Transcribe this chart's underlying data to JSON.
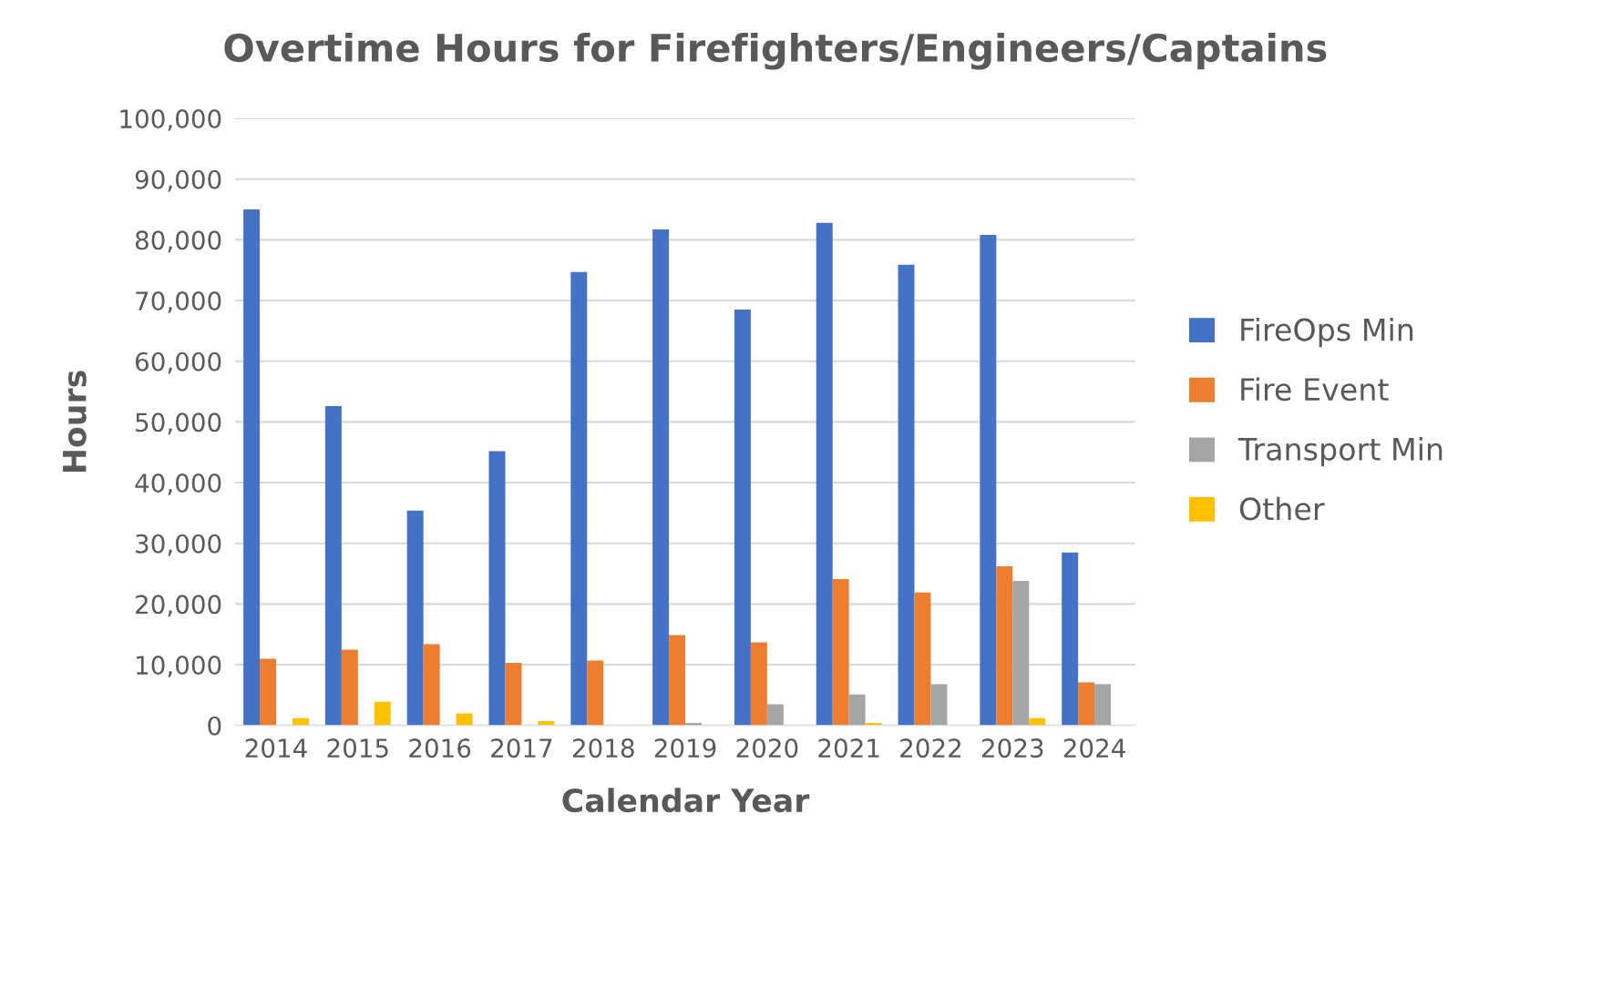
{
  "chart_data": {
    "type": "bar",
    "title": "Overtime Hours for Firefighters/Engineers/Captains",
    "xlabel": "Calendar Year",
    "ylabel": "Hours",
    "categories": [
      "2014",
      "2015",
      "2016",
      "2017",
      "2018",
      "2019",
      "2020",
      "2021",
      "2022",
      "2023",
      "2024"
    ],
    "series": [
      {
        "name": "FireOps Min",
        "color": "#4472c4",
        "values": [
          85000,
          52600,
          35400,
          45200,
          74700,
          81700,
          68500,
          82800,
          75900,
          80800,
          28500
        ]
      },
      {
        "name": "Fire Event",
        "color": "#ed7d31",
        "values": [
          11000,
          12500,
          13400,
          10300,
          10700,
          14900,
          13700,
          24100,
          21900,
          26200,
          7100
        ]
      },
      {
        "name": "Transport Min",
        "color": "#a5a5a5",
        "values": [
          0,
          0,
          0,
          0,
          0,
          400,
          3500,
          5100,
          6800,
          23800,
          6800
        ]
      },
      {
        "name": "Other",
        "color": "#ffc000",
        "values": [
          1200,
          3900,
          2000,
          700,
          0,
          0,
          0,
          400,
          0,
          1200,
          0
        ]
      }
    ],
    "ylim": [
      0,
      100000
    ],
    "yticks": [
      {
        "value": 0,
        "label": "0"
      },
      {
        "value": 10000,
        "label": "10,000"
      },
      {
        "value": 20000,
        "label": "20,000"
      },
      {
        "value": 30000,
        "label": "30,000"
      },
      {
        "value": 40000,
        "label": "40,000"
      },
      {
        "value": 50000,
        "label": "50,000"
      },
      {
        "value": 60000,
        "label": "60,000"
      },
      {
        "value": 70000,
        "label": "70,000"
      },
      {
        "value": 80000,
        "label": "80,000"
      },
      {
        "value": 90000,
        "label": "90,000"
      },
      {
        "value": 100000,
        "label": "100,000"
      }
    ],
    "grid": "y",
    "legend": "right"
  }
}
